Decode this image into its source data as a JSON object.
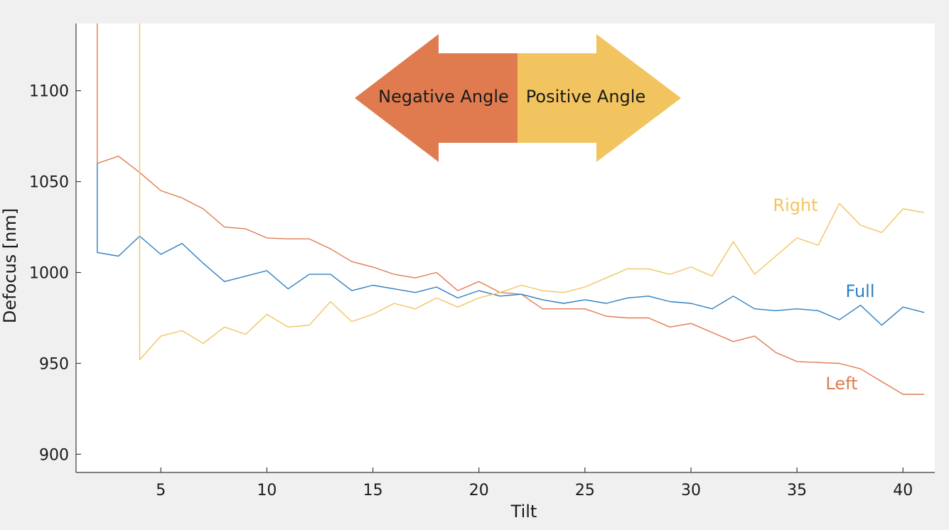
{
  "chart_data": {
    "type": "line",
    "xlabel": "Tilt",
    "ylabel": "Defocus [nm]",
    "xlim": [
      1,
      41.5
    ],
    "ylim": [
      890,
      1137
    ],
    "xticks": [
      5,
      10,
      15,
      20,
      25,
      30,
      35,
      40
    ],
    "yticks": [
      900,
      950,
      1000,
      1050,
      1100
    ],
    "grid": false,
    "series": [
      {
        "name": "Left",
        "color": "#e07b4f",
        "x": [
          2,
          2,
          3,
          4,
          5,
          6,
          7,
          8,
          9,
          10,
          11,
          12,
          13,
          14,
          15,
          16,
          17,
          18,
          19,
          20,
          21,
          22,
          23,
          24,
          25,
          26,
          27,
          28,
          29,
          30,
          31,
          32,
          33,
          34,
          35,
          36,
          37,
          38,
          39,
          40,
          41
        ],
        "y": [
          1137,
          1060,
          1064,
          1055,
          1045,
          1041,
          1035,
          1025,
          1024,
          1019,
          1018.5,
          1018.5,
          1013,
          1006,
          1003,
          999,
          997,
          1000,
          990,
          995,
          989,
          988,
          980,
          980,
          980,
          976,
          975,
          975,
          970,
          972,
          967,
          962,
          965,
          956,
          951,
          950.5,
          950,
          947,
          940,
          933,
          933
        ]
      },
      {
        "name": "Full",
        "color": "#2e7fc1",
        "x": [
          2,
          2,
          3,
          4,
          5,
          6,
          7,
          8,
          9,
          10,
          11,
          12,
          13,
          14,
          15,
          16,
          17,
          18,
          19,
          20,
          21,
          22,
          23,
          24,
          25,
          26,
          27,
          28,
          29,
          30,
          31,
          32,
          33,
          34,
          35,
          36,
          37,
          38,
          39,
          40,
          41
        ],
        "y": [
          1060,
          1011,
          1009,
          1020,
          1010,
          1016,
          1005,
          995,
          998,
          1001,
          991,
          999,
          999,
          990,
          993,
          991,
          989,
          992,
          986,
          990,
          987,
          988,
          985,
          983,
          985,
          983,
          986,
          987,
          984,
          983,
          980,
          987,
          980,
          979,
          980,
          979,
          974,
          982,
          971,
          981,
          978
        ]
      },
      {
        "name": "Right",
        "color": "#f2c45f",
        "x": [
          4,
          4,
          5,
          6,
          7,
          8,
          9,
          10,
          11,
          12,
          13,
          14,
          15,
          16,
          17,
          18,
          19,
          20,
          21,
          22,
          23,
          24,
          25,
          26,
          27,
          28,
          29,
          30,
          31,
          32,
          33,
          34,
          35,
          36,
          37,
          38,
          39,
          40,
          41
        ],
        "y": [
          1137,
          952,
          965,
          968,
          961,
          970,
          966,
          977,
          970,
          971,
          984,
          973,
          977,
          983,
          980,
          986,
          981,
          986,
          989,
          993,
          990,
          989,
          992,
          997,
          1002,
          1002,
          999,
          1003,
          998,
          1017,
          999,
          1009,
          1019,
          1015,
          1038,
          1026,
          1022,
          1035,
          1033
        ]
      }
    ],
    "series_labels": [
      {
        "text": "Right",
        "color": "#f2c45f"
      },
      {
        "text": "Full",
        "color": "#2e7fc1"
      },
      {
        "text": "Left",
        "color": "#e07b4f"
      }
    ],
    "annotation": {
      "left_text": "Negative Angle",
      "right_text": "Positive Angle",
      "left_color": "#e07b4f",
      "right_color": "#f2c45f"
    }
  }
}
